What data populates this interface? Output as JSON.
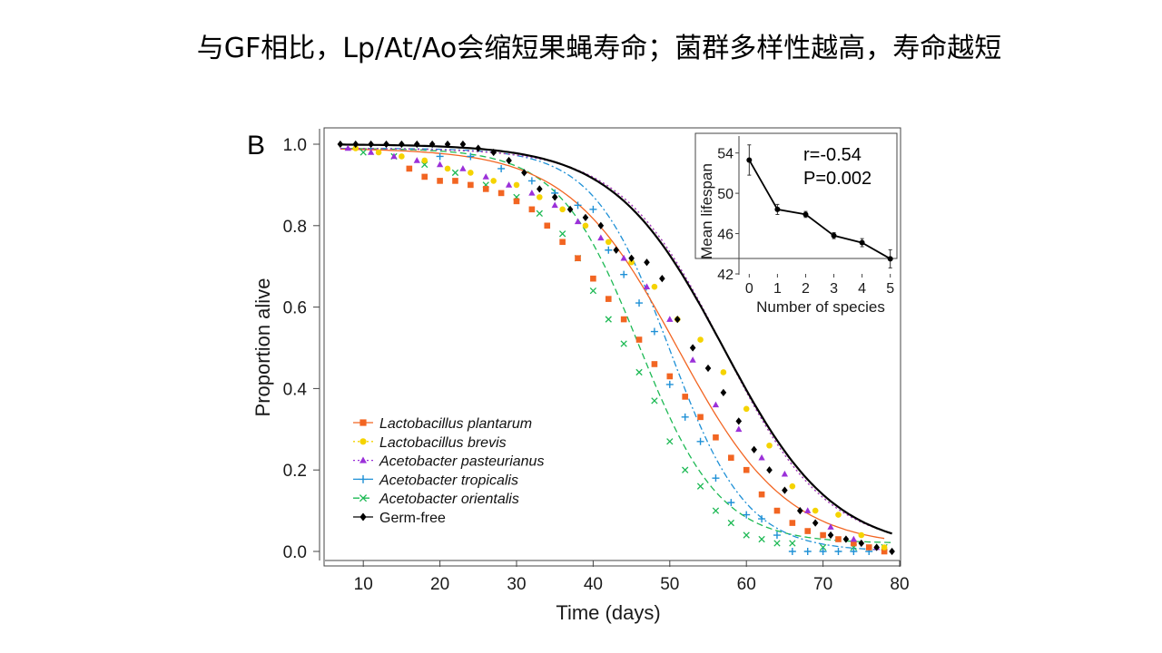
{
  "slide": {
    "title": "与GF相比，Lp/At/Ao会缩短果蝇寿命；菌群多样性越高，寿命越短"
  },
  "chart_data": [
    {
      "type": "scatter",
      "panel_label": "B",
      "xlabel": "Time (days)",
      "ylabel": "Proportion alive",
      "xlim": [
        5,
        80
      ],
      "ylim": [
        0,
        1.0
      ],
      "xticks": [
        10,
        20,
        30,
        40,
        50,
        60,
        70,
        80
      ],
      "yticks": [
        "0.0",
        "0.2",
        "0.4",
        "0.6",
        "0.8",
        "1.0"
      ],
      "legend_position": "bottom-left",
      "series": [
        {
          "name": "Lactobacillus plantarum",
          "color": "#f26522",
          "marker": "square",
          "fit": "solid",
          "mid": 51,
          "slope": 0.14,
          "top": 0.99,
          "floor": 0.01,
          "start": 7,
          "end": 78,
          "x": [
            16,
            18,
            20,
            22,
            24,
            26,
            28,
            30,
            32,
            34,
            36,
            38,
            40,
            42,
            44,
            46,
            48,
            50,
            52,
            54,
            56,
            58,
            60,
            62,
            64,
            66,
            68,
            70,
            72,
            74,
            76,
            78
          ],
          "y": [
            0.94,
            0.92,
            0.91,
            0.91,
            0.9,
            0.89,
            0.88,
            0.86,
            0.84,
            0.8,
            0.76,
            0.72,
            0.67,
            0.62,
            0.57,
            0.52,
            0.46,
            0.43,
            0.38,
            0.33,
            0.28,
            0.23,
            0.2,
            0.14,
            0.1,
            0.07,
            0.05,
            0.04,
            0.03,
            0.02,
            0.01,
            0.0
          ]
        },
        {
          "name": "Lactobacillus brevis",
          "color": "#f5d300",
          "marker": "circle",
          "fit": "dotted",
          "mid": 57,
          "slope": 0.15,
          "top": 0.99,
          "floor": 0.01,
          "start": 7,
          "end": 78,
          "x": [
            9,
            12,
            15,
            18,
            21,
            24,
            27,
            30,
            33,
            36,
            39,
            42,
            45,
            48,
            51,
            54,
            57,
            60,
            63,
            66,
            69,
            72,
            75,
            78
          ],
          "y": [
            0.99,
            0.98,
            0.97,
            0.96,
            0.94,
            0.93,
            0.91,
            0.9,
            0.87,
            0.84,
            0.8,
            0.76,
            0.71,
            0.65,
            0.57,
            0.52,
            0.44,
            0.35,
            0.26,
            0.16,
            0.1,
            0.09,
            0.04,
            0.01
          ]
        },
        {
          "name": "Acetobacter pasteurianus",
          "color": "#9b30d9",
          "marker": "triangle",
          "fit": "dotted",
          "mid": 57,
          "slope": 0.15,
          "top": 0.99,
          "floor": 0.01,
          "start": 7,
          "end": 78,
          "x": [
            8,
            11,
            14,
            17,
            20,
            23,
            26,
            29,
            32,
            35,
            38,
            41,
            44,
            47,
            50,
            53,
            56,
            59,
            62,
            65,
            68,
            71,
            74,
            77
          ],
          "y": [
            0.99,
            0.98,
            0.97,
            0.96,
            0.95,
            0.94,
            0.92,
            0.9,
            0.88,
            0.85,
            0.81,
            0.77,
            0.72,
            0.65,
            0.57,
            0.47,
            0.36,
            0.3,
            0.23,
            0.19,
            0.1,
            0.06,
            0.03,
            0.01
          ]
        },
        {
          "name": "Acetobacter tropicalis",
          "color": "#1e90d6",
          "marker": "plus",
          "fit": "dashdot",
          "mid": 50,
          "slope": 0.2,
          "top": 0.99,
          "floor": 0.0,
          "start": 7,
          "end": 77,
          "x": [
            20,
            24,
            28,
            32,
            35,
            38,
            40,
            42,
            44,
            46,
            48,
            50,
            52,
            54,
            56,
            58,
            60,
            62,
            64,
            66,
            68,
            70,
            72,
            74,
            76
          ],
          "y": [
            0.97,
            0.97,
            0.94,
            0.91,
            0.88,
            0.85,
            0.84,
            0.74,
            0.68,
            0.61,
            0.54,
            0.41,
            0.33,
            0.27,
            0.18,
            0.12,
            0.09,
            0.08,
            0.04,
            0.0,
            0.0,
            0.0,
            0.0,
            0.0,
            0.0
          ]
        },
        {
          "name": "Acetobacter orientalis",
          "color": "#1db954",
          "marker": "x",
          "fit": "dashed",
          "mid": 46,
          "slope": 0.19,
          "top": 0.99,
          "floor": 0.02,
          "start": 7,
          "end": 79,
          "x": [
            10,
            14,
            18,
            22,
            26,
            30,
            33,
            36,
            38,
            40,
            42,
            44,
            46,
            48,
            50,
            52,
            54,
            56,
            58,
            60,
            62,
            64,
            66,
            70,
            74,
            78
          ],
          "y": [
            0.98,
            0.97,
            0.95,
            0.93,
            0.9,
            0.87,
            0.83,
            0.78,
            0.72,
            0.64,
            0.57,
            0.51,
            0.44,
            0.37,
            0.27,
            0.2,
            0.16,
            0.1,
            0.07,
            0.04,
            0.03,
            0.02,
            0.02,
            0.01,
            0.01,
            0.01
          ]
        },
        {
          "name": "Germ-free",
          "color": "#000000",
          "marker": "diamond",
          "fit": "solid-thick",
          "mid": 57,
          "slope": 0.14,
          "top": 1.0,
          "floor": 0.0,
          "start": 7,
          "end": 79,
          "x": [
            7,
            9,
            11,
            13,
            15,
            17,
            19,
            21,
            23,
            25,
            27,
            29,
            31,
            33,
            35,
            37,
            39,
            41,
            43,
            45,
            47,
            49,
            51,
            53,
            55,
            57,
            59,
            61,
            63,
            65,
            67,
            69,
            71,
            73,
            75,
            77,
            79
          ],
          "y": [
            1.0,
            1.0,
            1.0,
            1.0,
            1.0,
            1.0,
            1.0,
            1.0,
            1.0,
            0.99,
            0.98,
            0.96,
            0.93,
            0.89,
            0.87,
            0.84,
            0.82,
            0.8,
            0.74,
            0.72,
            0.71,
            0.67,
            0.57,
            0.5,
            0.45,
            0.39,
            0.32,
            0.25,
            0.2,
            0.15,
            0.1,
            0.07,
            0.04,
            0.03,
            0.02,
            0.01,
            0.0
          ]
        }
      ]
    },
    {
      "type": "line",
      "inset": true,
      "xlabel": "Number of species",
      "ylabel": "Mean lifespan",
      "xlim": [
        -0.3,
        5.3
      ],
      "ylim": [
        42,
        55.5
      ],
      "xticks": [
        0,
        1,
        2,
        3,
        4,
        5
      ],
      "yticks": [
        42,
        46,
        50,
        54
      ],
      "x": [
        0,
        1,
        2,
        3,
        4,
        5
      ],
      "y": [
        53.3,
        48.4,
        47.9,
        45.8,
        45.1,
        43.5
      ],
      "err": [
        1.5,
        0.5,
        0.3,
        0.3,
        0.4,
        0.9
      ],
      "annotations": [
        "r=-0.54",
        "P=0.002"
      ]
    }
  ]
}
